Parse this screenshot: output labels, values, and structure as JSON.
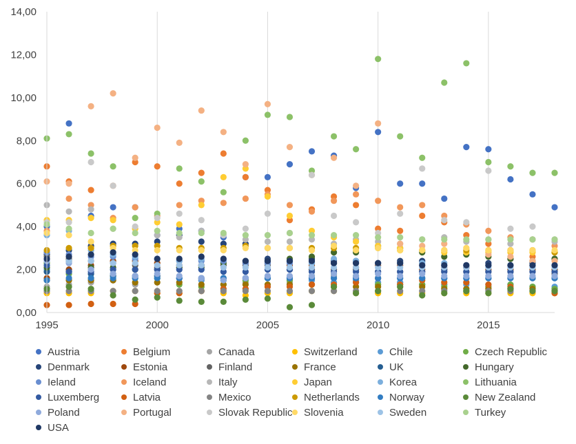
{
  "chart_data": {
    "type": "scatter",
    "title": "",
    "xlabel": "",
    "ylabel": "",
    "xlim": [
      1995,
      2018
    ],
    "ylim": [
      0,
      14
    ],
    "x_ticks": [
      "1995",
      "2000",
      "2005",
      "2010",
      "2015"
    ],
    "y_ticks": [
      "0,00",
      "2,00",
      "4,00",
      "6,00",
      "8,00",
      "10,00",
      "12,00",
      "14,00"
    ],
    "grid": "vertical",
    "legend_position": "bottom",
    "x": [
      1995,
      1996,
      1997,
      1998,
      1999,
      2000,
      2001,
      2002,
      2003,
      2004,
      2005,
      2006,
      2007,
      2008,
      2009,
      2010,
      2011,
      2012,
      2013,
      2014,
      2015,
      2016,
      2017,
      2018
    ],
    "series": [
      {
        "name": "Austria",
        "color": "#4472C4",
        "values": [
          4.0,
          8.8,
          4.5,
          4.9,
          4.9,
          3.6,
          3.9,
          3.8,
          3.5,
          6.3,
          6.3,
          6.9,
          7.5,
          7.3,
          5.8,
          8.4,
          6.0,
          6.0,
          5.3,
          7.7,
          7.6,
          6.2,
          5.5,
          4.9
        ]
      },
      {
        "name": "Belgium",
        "color": "#ED7D31",
        "values": [
          6.8,
          6.1,
          5.7,
          5.9,
          7.0,
          6.8,
          6.0,
          6.5,
          7.4,
          6.3,
          5.7,
          4.3,
          4.8,
          5.4,
          5.0,
          3.9,
          3.8,
          4.5,
          4.2,
          3.6,
          3.2,
          2.9,
          2.6,
          1.9
        ]
      },
      {
        "name": "Canada",
        "color": "#A5A5A5",
        "values": [
          1.2,
          1.3,
          1.4,
          1.5,
          1.3,
          1.7,
          1.6,
          1.5,
          1.3,
          1.4,
          1.2,
          1.4,
          1.6,
          1.7,
          1.4,
          1.3,
          1.4,
          1.3,
          1.3,
          1.4,
          1.2,
          1.3,
          1.2,
          1.1
        ]
      },
      {
        "name": "Switzerland",
        "color": "#FFC000",
        "values": [
          0.9,
          0.9,
          0.9,
          1.0,
          1.0,
          0.9,
          0.9,
          1.0,
          0.9,
          0.8,
          0.9,
          0.9,
          1.0,
          1.0,
          0.9,
          0.9,
          0.9,
          0.9,
          0.9,
          0.9,
          0.9,
          0.9,
          0.9,
          0.9
        ]
      },
      {
        "name": "Chile",
        "color": "#5B9BD5",
        "values": [
          2.0,
          1.9,
          1.8,
          1.8,
          1.7,
          1.6,
          1.6,
          1.5,
          1.5,
          1.6,
          1.6,
          1.6,
          1.5,
          1.4,
          1.5,
          1.4,
          1.4,
          1.3,
          1.3,
          1.3,
          1.3,
          1.3,
          1.2,
          1.2
        ]
      },
      {
        "name": "Czech Republic",
        "color": "#70AD47",
        "values": [
          2.3,
          1.8,
          1.6,
          1.7,
          1.6,
          1.6,
          1.3,
          1.2,
          1.3,
          1.5,
          1.6,
          1.5,
          1.7,
          1.8,
          1.7,
          1.3,
          1.3,
          1.3,
          1.2,
          1.0,
          1.2,
          1.3,
          1.2,
          1.1
        ]
      },
      {
        "name": "Denmark",
        "color": "#264478",
        "values": [
          2.7,
          2.9,
          3.1,
          3.2,
          3.2,
          3.3,
          3.6,
          3.3,
          3.2,
          3.2,
          2.5,
          2.4,
          2.5,
          2.4,
          2.4,
          2.3,
          2.4,
          2.4,
          2.0,
          2.1,
          2.3,
          2.5,
          2.3,
          2.5
        ]
      },
      {
        "name": "Estonia",
        "color": "#9E480E",
        "values": [
          1.6,
          2.0,
          2.2,
          2.4,
          2.4,
          2.3,
          2.2,
          2.2,
          2.2,
          2.3,
          2.3,
          2.2,
          2.2,
          2.3,
          2.1,
          2.2,
          2.2,
          2.0,
          2.1,
          2.1,
          2.0,
          2.0,
          2.0,
          2.0
        ]
      },
      {
        "name": "Finland",
        "color": "#636363",
        "values": [
          2.6,
          2.5,
          2.4,
          2.3,
          2.2,
          2.1,
          2.1,
          2.2,
          2.2,
          2.2,
          2.2,
          2.0,
          2.0,
          2.0,
          2.0,
          1.9,
          1.9,
          1.9,
          1.9,
          1.9,
          1.9,
          1.9,
          1.9,
          1.8
        ]
      },
      {
        "name": "France",
        "color": "#997300",
        "values": [
          1.5,
          1.5,
          1.5,
          1.5,
          1.4,
          1.4,
          1.4,
          1.3,
          1.3,
          1.3,
          1.3,
          1.3,
          1.3,
          1.2,
          1.2,
          1.2,
          1.2,
          1.2,
          1.1,
          1.1,
          1.1,
          1.1,
          1.1,
          1.0
        ]
      },
      {
        "name": "UK",
        "color": "#255E91",
        "values": [
          1.9,
          1.9,
          1.8,
          1.7,
          1.7,
          1.7,
          1.6,
          1.6,
          1.6,
          1.6,
          1.6,
          1.6,
          1.6,
          1.6,
          1.6,
          1.6,
          1.6,
          1.6,
          1.6,
          1.6,
          1.6,
          1.6,
          1.6,
          1.6
        ]
      },
      {
        "name": "Hungary",
        "color": "#43682B",
        "values": [
          2.1,
          2.4,
          2.1,
          2.1,
          2.0,
          2.0,
          2.1,
          2.1,
          2.3,
          2.4,
          2.4,
          2.5,
          2.6,
          2.8,
          2.8,
          3.1,
          3.0,
          2.8,
          2.6,
          2.7,
          2.6,
          2.5,
          2.4,
          2.5
        ]
      },
      {
        "name": "Ieland",
        "color": "#698ED0",
        "values": [
          2.8,
          2.7,
          2.6,
          2.6,
          2.5,
          2.5,
          2.4,
          2.4,
          2.4,
          2.3,
          2.3,
          2.3,
          2.3,
          2.3,
          2.3,
          2.3,
          2.3,
          2.2,
          2.2,
          2.2,
          2.2,
          2.2,
          2.2,
          2.2
        ]
      },
      {
        "name": "Iceland",
        "color": "#F1975A",
        "values": [
          3.8,
          5.3,
          5.0,
          4.4,
          4.9,
          4.5,
          5.0,
          5.2,
          5.1,
          5.3,
          5.5,
          5.0,
          4.7,
          5.2,
          5.5,
          5.2,
          4.9,
          5.0,
          4.5,
          4.1,
          3.8,
          3.5,
          3.4,
          3.1
        ]
      },
      {
        "name": "Italy",
        "color": "#B7B7B7",
        "values": [
          5.0,
          4.7,
          4.8,
          3.9,
          3.9,
          3.6,
          3.5,
          3.8,
          3.6,
          3.4,
          3.3,
          3.3,
          3.4,
          3.2,
          3.4,
          3.3,
          3.2,
          3.4,
          3.5,
          3.3,
          3.4,
          3.2,
          3.4,
          3.3
        ]
      },
      {
        "name": "Japan",
        "color": "#FFCD33",
        "values": [
          4.3,
          4.3,
          4.4,
          4.3,
          3.9,
          4.2,
          4.1,
          5.0,
          6.3,
          6.7,
          5.4,
          4.5,
          3.8,
          3.5,
          3.3,
          3.1,
          3.0,
          2.9,
          2.8,
          2.8,
          2.8,
          2.8,
          2.8,
          2.8
        ]
      },
      {
        "name": "Korea",
        "color": "#7CAFDD",
        "values": [
          3.6,
          3.8,
          2.9,
          2.7,
          2.6,
          2.5,
          2.4,
          2.5,
          2.5,
          2.4,
          2.4,
          2.4,
          2.3,
          2.5,
          2.4,
          2.3,
          2.3,
          2.3,
          2.3,
          2.2,
          2.2,
          2.2,
          2.2,
          2.2
        ]
      },
      {
        "name": "Lithuania",
        "color": "#8CC168",
        "values": [
          8.1,
          8.3,
          7.4,
          6.8,
          4.4,
          4.6,
          6.7,
          6.1,
          5.6,
          8.0,
          9.2,
          9.1,
          6.6,
          8.2,
          7.6,
          11.8,
          8.2,
          7.2,
          10.7,
          11.6,
          7.0,
          6.8,
          6.5,
          6.5
        ]
      },
      {
        "name": "Luxemberg",
        "color": "#335AA1",
        "values": [
          2.2,
          1.9,
          1.9,
          2.0,
          2.0,
          2.0,
          2.0,
          2.0,
          1.9,
          1.9,
          2.0,
          2.0,
          1.9,
          1.9,
          1.9,
          1.9,
          1.9,
          1.9,
          1.9,
          1.9,
          1.9,
          1.9,
          1.9,
          1.9
        ]
      },
      {
        "name": "Latvia",
        "color": "#D26012",
        "values": [
          0.35,
          0.35,
          0.4,
          0.4,
          0.4,
          0.9,
          0.9,
          1.0,
          1.1,
          1.1,
          1.2,
          1.2,
          1.3,
          1.3,
          1.4,
          1.6,
          1.3,
          1.5,
          1.4,
          1.4,
          1.3,
          1.2,
          1.0,
          0.9
        ]
      },
      {
        "name": "Mexico",
        "color": "#848484",
        "values": [
          1.0,
          1.0,
          1.0,
          1.0,
          1.0,
          1.0,
          1.0,
          1.0,
          1.0,
          1.0,
          1.0,
          1.0,
          1.0,
          1.0,
          1.0,
          1.0,
          1.0,
          1.0,
          1.0,
          1.0,
          1.0,
          1.0,
          1.0,
          1.0
        ]
      },
      {
        "name": "Netherlands",
        "color": "#CC9A00",
        "values": [
          2.9,
          3.0,
          3.0,
          3.1,
          3.1,
          3.1,
          3.0,
          3.0,
          3.0,
          3.1,
          3.0,
          3.0,
          3.0,
          3.0,
          3.0,
          3.0,
          2.9,
          2.9,
          2.9,
          2.9,
          2.9,
          2.9,
          2.9,
          2.8
        ]
      },
      {
        "name": "Norway",
        "color": "#327DC2",
        "values": [
          1.5,
          1.6,
          1.6,
          1.6,
          1.6,
          1.6,
          1.6,
          1.6,
          1.6,
          1.6,
          1.6,
          1.6,
          1.6,
          1.6,
          1.6,
          1.6,
          1.6,
          1.6,
          1.6,
          1.6,
          1.6,
          1.6,
          1.6,
          1.6
        ]
      },
      {
        "name": "New Zealand",
        "color": "#5A8A39",
        "values": [
          1.1,
          1.2,
          1.1,
          0.8,
          0.6,
          0.7,
          0.55,
          0.5,
          0.5,
          0.6,
          0.65,
          0.25,
          0.35,
          1.2,
          0.9,
          1.0,
          1.2,
          0.8,
          0.9,
          1.0,
          0.9,
          1.1,
          1.0,
          1.0
        ]
      },
      {
        "name": "Poland",
        "color": "#8FAADC",
        "values": [
          2.4,
          2.3,
          2.0,
          1.8,
          1.7,
          1.8,
          1.7,
          1.6,
          1.5,
          1.6,
          1.7,
          1.7,
          1.7,
          1.8,
          1.7,
          1.8,
          1.7,
          1.8,
          1.7,
          1.7,
          1.7,
          1.7,
          1.7,
          1.7
        ]
      },
      {
        "name": "Portugal",
        "color": "#F4B183",
        "values": [
          6.1,
          6.0,
          9.6,
          10.2,
          7.2,
          8.6,
          7.9,
          9.4,
          8.4,
          6.9,
          9.7,
          7.7,
          6.4,
          7.2,
          5.9,
          8.8,
          3.2,
          3.1,
          3.2,
          3.0,
          2.7,
          2.6,
          2.4,
          2.4
        ]
      },
      {
        "name": "Slovak Republic",
        "color": "#C9C9C9",
        "values": [
          4.2,
          4.2,
          7.0,
          5.9,
          4.0,
          4.4,
          4.6,
          4.3,
          3.6,
          3.9,
          4.6,
          3.7,
          6.4,
          4.5,
          4.2,
          3.7,
          4.6,
          6.7,
          4.3,
          4.2,
          6.6,
          3.9,
          4.0,
          3.4
        ]
      },
      {
        "name": "Slovenia",
        "color": "#FFD966",
        "values": [
          3.7,
          3.6,
          3.3,
          3.0,
          2.9,
          2.9,
          2.9,
          2.9,
          2.9,
          3.0,
          3.0,
          3.0,
          2.9,
          3.1,
          2.9,
          3.0,
          2.9,
          2.9,
          2.9,
          3.0,
          2.9,
          2.9,
          2.9,
          2.9
        ]
      },
      {
        "name": "Sweden",
        "color": "#9DC3E6",
        "values": [
          2.5,
          2.4,
          2.4,
          2.3,
          2.3,
          2.2,
          2.2,
          2.2,
          2.1,
          2.1,
          2.1,
          2.1,
          2.1,
          2.1,
          2.1,
          2.1,
          2.1,
          2.1,
          2.1,
          2.1,
          2.1,
          2.1,
          2.1,
          2.1
        ]
      },
      {
        "name": "Turkey",
        "color": "#A9D18E",
        "values": [
          4.1,
          3.9,
          3.7,
          3.9,
          3.7,
          3.8,
          3.7,
          3.7,
          3.7,
          3.6,
          3.6,
          3.7,
          3.6,
          3.6,
          3.6,
          3.5,
          3.5,
          3.4,
          3.4,
          3.4,
          3.4,
          3.4,
          3.4,
          3.4
        ]
      },
      {
        "name": "USA",
        "color": "#203864",
        "values": [
          2.5,
          2.6,
          2.7,
          2.8,
          2.7,
          2.5,
          2.5,
          2.6,
          2.5,
          2.4,
          2.4,
          2.4,
          2.4,
          2.3,
          2.3,
          2.3,
          2.3,
          2.2,
          2.2,
          2.2,
          2.2,
          2.2,
          2.2,
          2.2
        ]
      }
    ]
  }
}
